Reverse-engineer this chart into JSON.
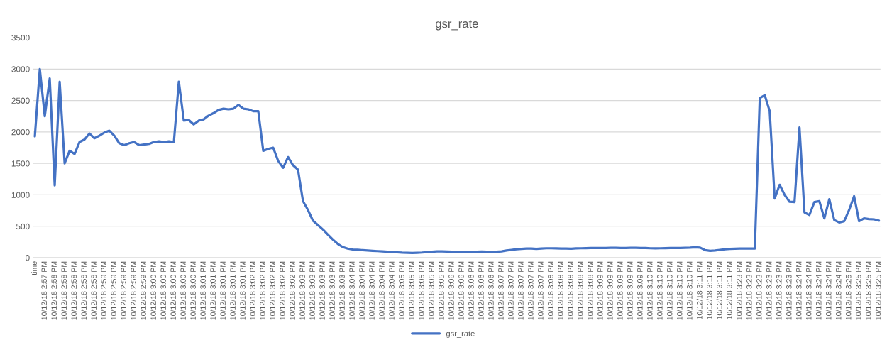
{
  "chart_data": {
    "type": "line",
    "title": "gsr_rate",
    "categories": [
      "time",
      null,
      "10/12/18 2:57 PM",
      null,
      "10/12/18 2:58 PM",
      null,
      "10/12/18 2:58 PM",
      null,
      "10/12/18 2:58 PM",
      null,
      "10/12/18 2:58 PM",
      null,
      "10/12/18 2:58 PM",
      null,
      "10/12/18 2:59 PM",
      null,
      "10/12/18 2:59 PM",
      null,
      "10/12/18 2:59 PM",
      null,
      "10/12/18 2:59 PM",
      null,
      "10/12/18 2:59 PM",
      null,
      "10/12/18 3:00 PM",
      null,
      "10/12/18 3:00 PM",
      null,
      "10/12/18 3:00 PM",
      null,
      "10/12/18 3:00 PM",
      null,
      "10/12/18 3:00 PM",
      null,
      "10/12/18 3:01 PM",
      null,
      "10/12/18 3:01 PM",
      null,
      "10/12/18 3:01 PM",
      null,
      "10/12/18 3:01 PM",
      null,
      "10/12/18 3:01 PM",
      null,
      "10/12/18 3:02 PM",
      null,
      "10/12/18 3:02 PM",
      null,
      "10/12/18 3:02 PM",
      null,
      "10/12/18 3:02 PM",
      null,
      "10/12/18 3:02 PM",
      null,
      "10/12/18 3:03 PM",
      null,
      "10/12/18 3:03 PM",
      null,
      "10/12/18 3:03 PM",
      null,
      "10/12/18 3:03 PM",
      null,
      "10/12/18 3:03 PM",
      null,
      "10/12/18 3:04 PM",
      null,
      "10/12/18 3:04 PM",
      null,
      "10/12/18 3:04 PM",
      null,
      "10/12/18 3:04 PM",
      null,
      "10/12/18 3:04 PM",
      null,
      "10/12/18 3:05 PM",
      null,
      "10/12/18 3:05 PM",
      null,
      "10/12/18 3:05 PM",
      null,
      "10/12/18 3:05 PM",
      null,
      "10/12/18 3:05 PM",
      null,
      "10/12/18 3:06 PM",
      null,
      "10/12/18 3:06 PM",
      null,
      "10/12/18 3:06 PM",
      null,
      "10/12/18 3:06 PM",
      null,
      "10/12/18 3:06 PM",
      null,
      "10/12/18 3:07 PM",
      null,
      "10/12/18 3:07 PM",
      null,
      "10/12/18 3:07 PM",
      null,
      "10/12/18 3:07 PM",
      null,
      "10/12/18 3:07 PM",
      null,
      "10/12/18 3:08 PM",
      null,
      "10/12/18 3:08 PM",
      null,
      "10/12/18 3:08 PM",
      null,
      "10/12/18 3:08 PM",
      null,
      "10/12/18 3:08 PM",
      null,
      "10/12/18 3:09 PM",
      null,
      "10/12/18 3:09 PM",
      null,
      "10/12/18 3:09 PM",
      null,
      "10/12/18 3:09 PM",
      null,
      "10/12/18 3:09 PM",
      null,
      "10/12/18 3:10 PM",
      null,
      "10/12/18 3:10 PM",
      null,
      "10/12/18 3:10 PM",
      null,
      "10/12/18 3:10 PM",
      null,
      "10/12/18 3:10 PM",
      null,
      "10/12/18 3:11 PM",
      null,
      "10/12/18 3:11 PM",
      null,
      "10/12/18 3:11 PM",
      null,
      "10/12/18 3:11 PM",
      null,
      "10/12/18 3:23 PM",
      null,
      "10/12/18 3:23 PM",
      null,
      "10/12/18 3:23 PM",
      null,
      "10/12/18 3:23 PM",
      null,
      "10/12/18 3:23 PM",
      null,
      "10/12/18 3:23 PM",
      null,
      "10/12/18 3:24 PM",
      null,
      "10/12/18 3:24 PM",
      null,
      "10/12/18 3:24 PM",
      null,
      "10/12/18 3:24 PM",
      null,
      "10/12/18 3:24 PM",
      null,
      "10/12/18 3:25 PM",
      null,
      "10/12/18 3:25 PM",
      null,
      "10/12/18 3:25 PM",
      null,
      "10/12/18 3:25 PM"
    ],
    "series": [
      {
        "name": "gsr_rate",
        "color": "#4472c4",
        "values": [
          1930,
          3000,
          2250,
          2850,
          1150,
          2800,
          1500,
          1700,
          1650,
          1840,
          1880,
          1975,
          1900,
          1940,
          1990,
          2020,
          1940,
          1820,
          1790,
          1820,
          1840,
          1790,
          1800,
          1810,
          1840,
          1850,
          1840,
          1850,
          1840,
          2800,
          2180,
          2190,
          2120,
          2180,
          2200,
          2260,
          2300,
          2350,
          2370,
          2360,
          2370,
          2430,
          2370,
          2360,
          2330,
          2330,
          1700,
          1730,
          1750,
          1540,
          1430,
          1600,
          1470,
          1400,
          900,
          760,
          590,
          520,
          450,
          370,
          290,
          220,
          170,
          145,
          130,
          125,
          120,
          115,
          110,
          105,
          100,
          95,
          90,
          85,
          80,
          78,
          75,
          78,
          82,
          88,
          95,
          100,
          100,
          98,
          95,
          95,
          95,
          95,
          92,
          95,
          98,
          95,
          92,
          95,
          100,
          115,
          125,
          135,
          140,
          145,
          145,
          140,
          145,
          150,
          150,
          148,
          145,
          145,
          142,
          148,
          150,
          152,
          155,
          155,
          155,
          155,
          158,
          158,
          155,
          155,
          158,
          158,
          155,
          155,
          150,
          148,
          150,
          152,
          155,
          155,
          155,
          158,
          160,
          165,
          160,
          120,
          110,
          115,
          125,
          135,
          140,
          142,
          145,
          145,
          145,
          145,
          2540,
          2585,
          2330,
          940,
          1160,
          1000,
          890,
          885,
          2070,
          720,
          680,
          885,
          900,
          625,
          930,
          600,
          560,
          580,
          760,
          980,
          580,
          625,
          615,
          610,
          590
        ]
      }
    ],
    "ylim": [
      0,
      3500
    ],
    "yticks": [
      0,
      500,
      1000,
      1500,
      2000,
      2500,
      3000,
      3500
    ],
    "grid": "y",
    "legend": "bottom",
    "marker": "none",
    "line_style": "solid"
  }
}
